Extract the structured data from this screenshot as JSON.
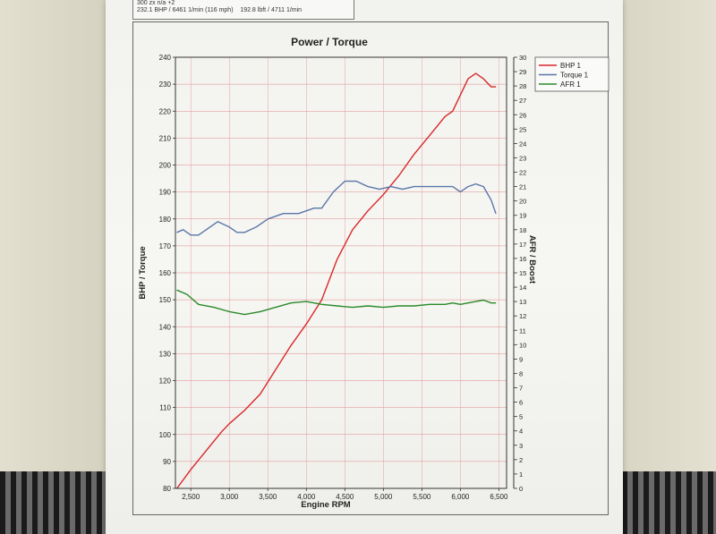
{
  "header": {
    "line1": "300 zx n/a +2",
    "line2_power": "232.1 BHP / 6461 1/min (116 mph)",
    "line2_torque": "192.8 lbft / 4711 1/min"
  },
  "chart_data": {
    "type": "line",
    "title": "Power / Torque",
    "xlabel": "Engine RPM",
    "ylabel_left": "BHP / Torque",
    "ylabel_right": "AFR / Boost",
    "xlim": [
      2300,
      6600
    ],
    "ylim_left": [
      80,
      240
    ],
    "ylim_right": [
      0,
      30
    ],
    "x_ticks": [
      "2,500",
      "3,000",
      "3,500",
      "4,000",
      "4,500",
      "5,000",
      "5,500",
      "6,000",
      "6,500"
    ],
    "x_tick_values": [
      2500,
      3000,
      3500,
      4000,
      4500,
      5000,
      5500,
      6000,
      6500
    ],
    "y_left_ticks": [
      80,
      90,
      100,
      110,
      120,
      130,
      140,
      150,
      160,
      170,
      180,
      190,
      200,
      210,
      220,
      230,
      240
    ],
    "y_right_ticks": [
      0,
      1,
      2,
      3,
      4,
      5,
      6,
      7,
      8,
      9,
      10,
      11,
      12,
      13,
      14,
      15,
      16,
      17,
      18,
      19,
      20,
      21,
      22,
      23,
      24,
      25,
      26,
      27,
      28,
      29,
      30
    ],
    "grid": true,
    "legend_position": "top-right",
    "series": [
      {
        "name": "BHP 1",
        "axis": "left",
        "color": "#d8282a",
        "x": [
          2320,
          2500,
          2700,
          2900,
          3000,
          3200,
          3400,
          3600,
          3800,
          4000,
          4200,
          4400,
          4600,
          4800,
          5000,
          5200,
          5400,
          5600,
          5800,
          5900,
          6000,
          6100,
          6200,
          6300,
          6400,
          6460
        ],
        "y": [
          80,
          87,
          94,
          101,
          104,
          109,
          115,
          124,
          133,
          141,
          150,
          165,
          176,
          183,
          189,
          196,
          204,
          211,
          218,
          220,
          226,
          232,
          234,
          232,
          229,
          229
        ]
      },
      {
        "name": "Torque 1",
        "axis": "left",
        "color": "#5a76a8",
        "x": [
          2320,
          2400,
          2500,
          2600,
          2700,
          2850,
          3000,
          3100,
          3200,
          3350,
          3500,
          3700,
          3900,
          4100,
          4200,
          4350,
          4500,
          4650,
          4800,
          4950,
          5100,
          5250,
          5400,
          5500,
          5650,
          5800,
          5900,
          6000,
          6100,
          6200,
          6300,
          6400,
          6460
        ],
        "y": [
          175,
          176,
          174,
          174,
          176,
          179,
          177,
          175,
          175,
          177,
          180,
          182,
          182,
          184,
          184,
          190,
          194,
          194,
          192,
          191,
          192,
          191,
          192,
          192,
          192,
          192,
          192,
          190,
          192,
          193,
          192,
          187,
          182
        ]
      },
      {
        "name": "AFR 1",
        "axis": "right",
        "color": "#2a8a2a",
        "x": [
          2320,
          2450,
          2600,
          2800,
          3000,
          3200,
          3400,
          3600,
          3800,
          4000,
          4200,
          4400,
          4600,
          4800,
          5000,
          5200,
          5400,
          5600,
          5800,
          5900,
          6000,
          6100,
          6200,
          6300,
          6400,
          6460
        ],
        "y": [
          13.8,
          13.5,
          12.8,
          12.6,
          12.3,
          12.1,
          12.3,
          12.6,
          12.9,
          13.0,
          12.8,
          12.7,
          12.6,
          12.7,
          12.6,
          12.7,
          12.7,
          12.8,
          12.8,
          12.9,
          12.8,
          12.9,
          13.0,
          13.1,
          12.9,
          12.9
        ]
      }
    ]
  }
}
